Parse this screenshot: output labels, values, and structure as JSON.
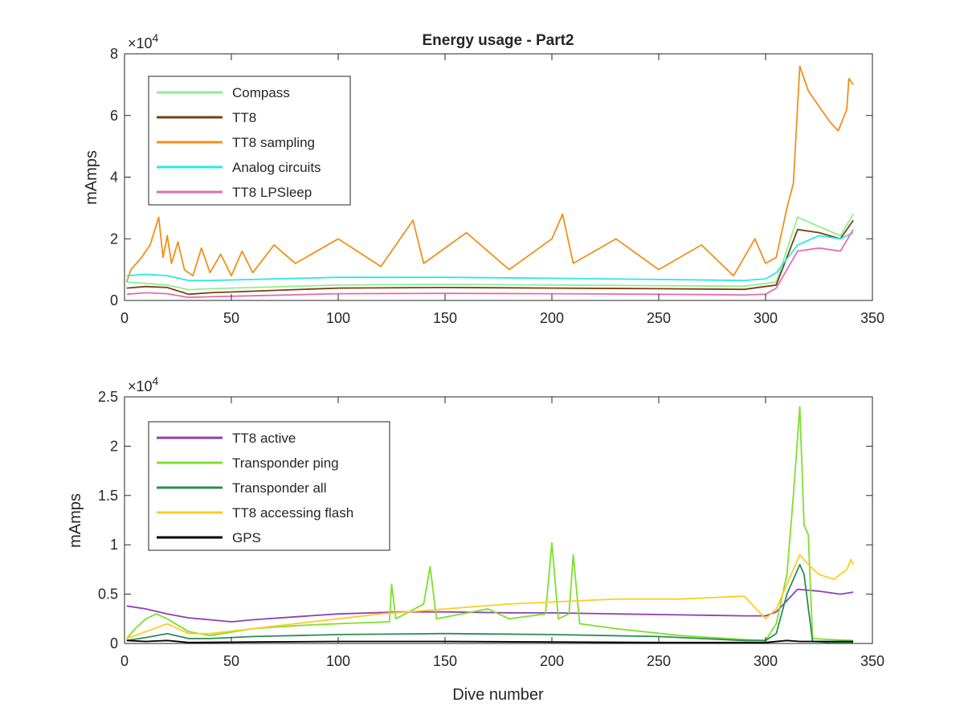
{
  "figure": {
    "title": "Energy usage - Part2"
  },
  "chart_data": [
    {
      "type": "line",
      "title": "Energy usage - Part2",
      "xlabel": "",
      "ylabel": "mAmps",
      "xlim": [
        0,
        350
      ],
      "ylim": [
        0,
        80000
      ],
      "x_ticks": [
        "0",
        "50",
        "100",
        "150",
        "200",
        "250",
        "300",
        "350"
      ],
      "y_ticks": [
        "0",
        "2",
        "4",
        "6",
        "8"
      ],
      "y_exponent_label": "×10",
      "y_exponent_power": "4",
      "grid": false,
      "legend_position": "top-left",
      "series": [
        {
          "name": "Compass",
          "color": "#90ee90",
          "points": [
            [
              1,
              6000
            ],
            [
              10,
              5500
            ],
            [
              20,
              5000
            ],
            [
              30,
              3500
            ],
            [
              40,
              3800
            ],
            [
              60,
              4200
            ],
            [
              100,
              5000
            ],
            [
              150,
              5200
            ],
            [
              200,
              5000
            ],
            [
              250,
              4800
            ],
            [
              290,
              4600
            ],
            [
              305,
              6000
            ],
            [
              315,
              27000
            ],
            [
              325,
              24000
            ],
            [
              335,
              21000
            ],
            [
              341,
              28000
            ]
          ]
        },
        {
          "name": "TT8",
          "color": "#7b3f10",
          "points": [
            [
              1,
              4000
            ],
            [
              10,
              4500
            ],
            [
              20,
              4200
            ],
            [
              30,
              2000
            ],
            [
              40,
              2500
            ],
            [
              60,
              3000
            ],
            [
              100,
              4000
            ],
            [
              150,
              4200
            ],
            [
              200,
              4000
            ],
            [
              250,
              3800
            ],
            [
              290,
              3600
            ],
            [
              305,
              5000
            ],
            [
              315,
              23000
            ],
            [
              325,
              22000
            ],
            [
              335,
              20000
            ],
            [
              341,
              26000
            ]
          ]
        },
        {
          "name": "TT8 sampling",
          "color": "#f0901a",
          "points": [
            [
              1,
              6000
            ],
            [
              3,
              10000
            ],
            [
              8,
              14000
            ],
            [
              12,
              18000
            ],
            [
              16,
              27000
            ],
            [
              18,
              14000
            ],
            [
              20,
              21000
            ],
            [
              22,
              12000
            ],
            [
              25,
              19000
            ],
            [
              28,
              10000
            ],
            [
              32,
              8000
            ],
            [
              36,
              17000
            ],
            [
              40,
              9000
            ],
            [
              45,
              15000
            ],
            [
              50,
              8000
            ],
            [
              55,
              16000
            ],
            [
              60,
              9000
            ],
            [
              70,
              18000
            ],
            [
              80,
              12000
            ],
            [
              100,
              20000
            ],
            [
              120,
              11000
            ],
            [
              135,
              26000
            ],
            [
              140,
              12000
            ],
            [
              160,
              22000
            ],
            [
              180,
              10000
            ],
            [
              200,
              20000
            ],
            [
              205,
              28000
            ],
            [
              210,
              12000
            ],
            [
              230,
              20000
            ],
            [
              250,
              10000
            ],
            [
              270,
              18000
            ],
            [
              285,
              8000
            ],
            [
              295,
              20000
            ],
            [
              300,
              12000
            ],
            [
              305,
              14000
            ],
            [
              310,
              30000
            ],
            [
              313,
              38000
            ],
            [
              316,
              76000
            ],
            [
              320,
              68000
            ],
            [
              330,
              58000
            ],
            [
              334,
              55000
            ],
            [
              338,
              62000
            ],
            [
              339,
              72000
            ],
            [
              341,
              70000
            ]
          ]
        },
        {
          "name": "Analog circuits",
          "color": "#2ee6e6",
          "points": [
            [
              1,
              8000
            ],
            [
              10,
              8500
            ],
            [
              20,
              8000
            ],
            [
              30,
              6500
            ],
            [
              40,
              6500
            ],
            [
              60,
              6800
            ],
            [
              100,
              7500
            ],
            [
              150,
              7500
            ],
            [
              200,
              7200
            ],
            [
              250,
              6800
            ],
            [
              290,
              6500
            ],
            [
              300,
              7000
            ],
            [
              305,
              9000
            ],
            [
              315,
              18000
            ],
            [
              325,
              21000
            ],
            [
              335,
              20000
            ],
            [
              341,
              22000
            ]
          ]
        },
        {
          "name": "TT8 LPSleep",
          "color": "#e06fb0",
          "points": [
            [
              1,
              2000
            ],
            [
              10,
              2500
            ],
            [
              20,
              2200
            ],
            [
              30,
              1000
            ],
            [
              40,
              1200
            ],
            [
              60,
              1500
            ],
            [
              100,
              2200
            ],
            [
              150,
              2300
            ],
            [
              200,
              2200
            ],
            [
              250,
              2000
            ],
            [
              290,
              1800
            ],
            [
              300,
              2000
            ],
            [
              305,
              4000
            ],
            [
              315,
              16000
            ],
            [
              325,
              17000
            ],
            [
              335,
              16000
            ],
            [
              341,
              23000
            ]
          ]
        }
      ]
    },
    {
      "type": "line",
      "title": "",
      "xlabel": "Dive number",
      "ylabel": "mAmps",
      "xlim": [
        0,
        350
      ],
      "ylim": [
        0,
        25000
      ],
      "x_ticks": [
        "0",
        "50",
        "100",
        "150",
        "200",
        "250",
        "300",
        "350"
      ],
      "y_ticks": [
        "0",
        "0.5",
        "1",
        "1.5",
        "2",
        "2.5"
      ],
      "y_exponent_label": "×10",
      "y_exponent_power": "4",
      "grid": false,
      "legend_position": "top-left",
      "series": [
        {
          "name": "TT8 active",
          "color": "#8e3fb5",
          "points": [
            [
              1,
              3800
            ],
            [
              10,
              3500
            ],
            [
              20,
              3000
            ],
            [
              30,
              2600
            ],
            [
              40,
              2400
            ],
            [
              50,
              2200
            ],
            [
              60,
              2400
            ],
            [
              80,
              2700
            ],
            [
              100,
              3000
            ],
            [
              130,
              3200
            ],
            [
              150,
              3200
            ],
            [
              180,
              3100
            ],
            [
              200,
              3100
            ],
            [
              230,
              3000
            ],
            [
              260,
              2900
            ],
            [
              290,
              2800
            ],
            [
              300,
              2800
            ],
            [
              305,
              3200
            ],
            [
              315,
              5500
            ],
            [
              325,
              5300
            ],
            [
              335,
              5000
            ],
            [
              341,
              5200
            ]
          ]
        },
        {
          "name": "Transponder ping",
          "color": "#7de02a",
          "points": [
            [
              1,
              500
            ],
            [
              5,
              1500
            ],
            [
              10,
              2500
            ],
            [
              15,
              3000
            ],
            [
              20,
              2500
            ],
            [
              30,
              1200
            ],
            [
              40,
              800
            ],
            [
              60,
              1500
            ],
            [
              80,
              1800
            ],
            [
              100,
              2000
            ],
            [
              124,
              2200
            ],
            [
              125,
              6000
            ],
            [
              127,
              2500
            ],
            [
              140,
              4000
            ],
            [
              143,
              7800
            ],
            [
              146,
              2500
            ],
            [
              170,
              3500
            ],
            [
              180,
              2500
            ],
            [
              197,
              3000
            ],
            [
              200,
              10200
            ],
            [
              203,
              2500
            ],
            [
              208,
              3000
            ],
            [
              210,
              9000
            ],
            [
              213,
              2000
            ],
            [
              230,
              1500
            ],
            [
              260,
              800
            ],
            [
              290,
              400
            ],
            [
              300,
              300
            ],
            [
              305,
              2000
            ],
            [
              310,
              7000
            ],
            [
              313,
              15000
            ],
            [
              316,
              24000
            ],
            [
              318,
              12000
            ],
            [
              320,
              11000
            ],
            [
              322,
              500
            ],
            [
              330,
              400
            ],
            [
              341,
              300
            ]
          ]
        },
        {
          "name": "Transponder all",
          "color": "#2e8b57",
          "points": [
            [
              1,
              300
            ],
            [
              10,
              600
            ],
            [
              20,
              1000
            ],
            [
              30,
              500
            ],
            [
              40,
              500
            ],
            [
              60,
              700
            ],
            [
              100,
              900
            ],
            [
              150,
              1000
            ],
            [
              200,
              900
            ],
            [
              250,
              700
            ],
            [
              290,
              300
            ],
            [
              300,
              300
            ],
            [
              305,
              1000
            ],
            [
              310,
              5000
            ],
            [
              316,
              8000
            ],
            [
              318,
              7000
            ],
            [
              322,
              200
            ],
            [
              330,
              100
            ],
            [
              341,
              100
            ]
          ]
        },
        {
          "name": "TT8 accessing flash",
          "color": "#ffcc22",
          "points": [
            [
              1,
              500
            ],
            [
              10,
              1200
            ],
            [
              20,
              2000
            ],
            [
              30,
              1000
            ],
            [
              40,
              1000
            ],
            [
              60,
              1500
            ],
            [
              80,
              2000
            ],
            [
              100,
              2500
            ],
            [
              120,
              3000
            ],
            [
              150,
              3500
            ],
            [
              180,
              4000
            ],
            [
              200,
              4200
            ],
            [
              230,
              4500
            ],
            [
              260,
              4500
            ],
            [
              290,
              4800
            ],
            [
              300,
              2500
            ],
            [
              305,
              3500
            ],
            [
              310,
              6000
            ],
            [
              316,
              9000
            ],
            [
              320,
              8000
            ],
            [
              325,
              7000
            ],
            [
              332,
              6500
            ],
            [
              338,
              7500
            ],
            [
              340,
              8500
            ],
            [
              341,
              8000
            ]
          ]
        },
        {
          "name": "GPS",
          "color": "#000000",
          "points": [
            [
              1,
              300
            ],
            [
              10,
              200
            ],
            [
              20,
              300
            ],
            [
              30,
              100
            ],
            [
              60,
              150
            ],
            [
              100,
              200
            ],
            [
              150,
              200
            ],
            [
              200,
              150
            ],
            [
              250,
              100
            ],
            [
              290,
              100
            ],
            [
              300,
              100
            ],
            [
              310,
              300
            ],
            [
              316,
              200
            ],
            [
              330,
              200
            ],
            [
              341,
              200
            ]
          ]
        }
      ]
    }
  ]
}
